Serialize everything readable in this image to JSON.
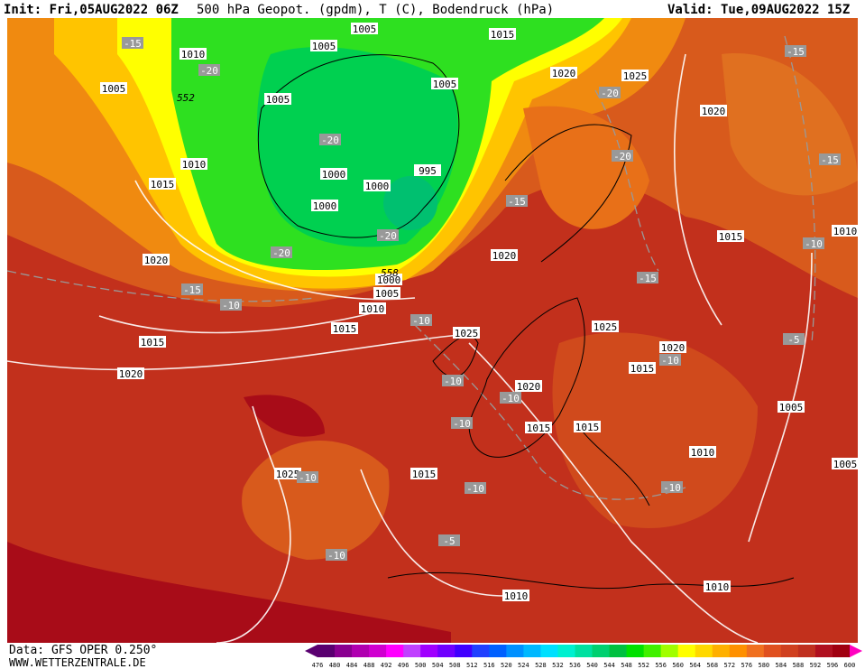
{
  "header": {
    "init": "Init: Fri,05AUG2022 06Z",
    "title": "500 hPa Geopot. (gpdm), T (C), Bodendruck (hPa)",
    "valid": "Valid: Tue,09AUG2022 15Z"
  },
  "footer": {
    "data_source": "Data: GFS OPER 0.250°",
    "website": "WWW.WETTERZENTRALE.DE"
  },
  "map": {
    "isobar_labels": [
      "1005",
      "1015",
      "1010",
      "1005",
      "1005",
      "1005",
      "1005",
      "1020",
      "1025",
      "1020",
      "1010",
      "1015",
      "1000",
      "995",
      "1000",
      "1000",
      "1020",
      "1015",
      "1010",
      "1020",
      "1000",
      "1005",
      "1010",
      "1015",
      "1025",
      "1025",
      "1015",
      "1020",
      "1015",
      "1020",
      "1020",
      "1015",
      "1015",
      "1005",
      "1010",
      "1025",
      "1015",
      "1005",
      "1010",
      "1010"
    ],
    "temperature_labels": [
      "-15",
      "-20",
      "-20",
      "-20",
      "-15",
      "-15",
      "-20",
      "-20",
      "-20",
      "-15",
      "-15",
      "-10",
      "-15",
      "-10",
      "-10",
      "-10",
      "-10",
      "-10",
      "-10",
      "-5",
      "-10",
      "-10",
      "-10",
      "-5",
      "-10"
    ],
    "height_labels": [
      "552",
      "558"
    ]
  },
  "legend": {
    "values": [
      476,
      480,
      484,
      488,
      492,
      496,
      500,
      504,
      508,
      512,
      516,
      520,
      524,
      528,
      532,
      536,
      540,
      544,
      548,
      552,
      556,
      560,
      564,
      568,
      572,
      576,
      580,
      584,
      588,
      592,
      596,
      600
    ],
    "colors": [
      "#5a0070",
      "#8a0090",
      "#b000b0",
      "#d000d0",
      "#ff00ff",
      "#c040ff",
      "#a000ff",
      "#7000ff",
      "#4000ff",
      "#2040ff",
      "#0060ff",
      "#0090ff",
      "#00b8ff",
      "#00e0ff",
      "#00f0d0",
      "#00e0a0",
      "#00d070",
      "#00c040",
      "#00e000",
      "#40f000",
      "#a0ff00",
      "#ffff00",
      "#ffd800",
      "#ffb000",
      "#ff9000",
      "#f07020",
      "#e05020",
      "#d04020",
      "#c03020",
      "#b01020",
      "#a00010",
      "#ff00c0"
    ]
  }
}
